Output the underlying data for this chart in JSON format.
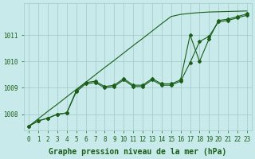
{
  "xlabel": "Graphe pression niveau de la mer (hPa)",
  "x": [
    0,
    1,
    2,
    3,
    4,
    5,
    6,
    7,
    8,
    9,
    10,
    11,
    12,
    13,
    14,
    15,
    16,
    17,
    18,
    19,
    20,
    21,
    22,
    23
  ],
  "y_line1": [
    1007.55,
    1007.75,
    1007.85,
    1008.0,
    1008.05,
    1008.9,
    1009.2,
    1009.25,
    1009.05,
    1009.1,
    1009.35,
    1009.1,
    1009.1,
    1009.35,
    1009.15,
    1009.15,
    1009.3,
    1011.0,
    1010.0,
    1010.85,
    1011.55,
    1011.6,
    1011.7,
    1011.8
  ],
  "y_line2": [
    1007.55,
    1007.75,
    1007.85,
    1008.0,
    1008.05,
    1008.85,
    1009.15,
    1009.2,
    1009.0,
    1009.05,
    1009.3,
    1009.05,
    1009.05,
    1009.3,
    1009.1,
    1009.1,
    1009.25,
    1009.95,
    1010.75,
    1010.95,
    1011.5,
    1011.55,
    1011.65,
    1011.75
  ],
  "y_trend": [
    1007.55,
    1007.83,
    1008.11,
    1008.38,
    1008.66,
    1008.94,
    1009.21,
    1009.49,
    1009.77,
    1010.04,
    1010.32,
    1010.6,
    1010.87,
    1011.15,
    1011.43,
    1011.7,
    1011.78,
    1011.82,
    1011.85,
    1011.87,
    1011.88,
    1011.89,
    1011.9,
    1011.91
  ],
  "line_color": "#1a5e1a",
  "bg_color": "#c8eaea",
  "grid_color": "#a0c8c8",
  "text_color": "#1a5e1a",
  "ylim": [
    1007.4,
    1012.2
  ],
  "yticks": [
    1008,
    1009,
    1010,
    1011
  ],
  "xlim": [
    -0.5,
    23.5
  ],
  "marker": "D",
  "markersize": 2.0,
  "linewidth": 0.8,
  "xlabel_fontsize": 7,
  "tick_fontsize": 5.5
}
